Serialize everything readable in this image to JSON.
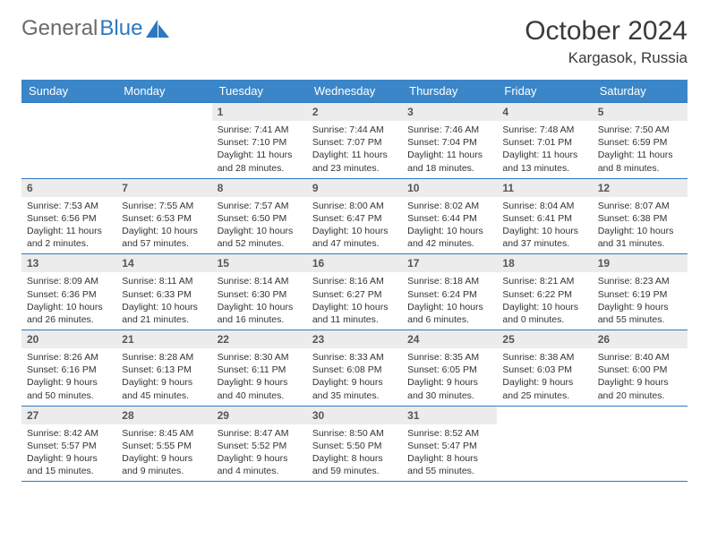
{
  "brand": {
    "part1": "General",
    "part2": "Blue"
  },
  "title": "October 2024",
  "location": "Kargasok, Russia",
  "weekdays": [
    "Sunday",
    "Monday",
    "Tuesday",
    "Wednesday",
    "Thursday",
    "Friday",
    "Saturday"
  ],
  "colors": {
    "header_bg": "#3b86c8",
    "border": "#2d79c1",
    "daynum_bg": "#ececec",
    "text": "#333333",
    "logo_gray": "#6a6a6a"
  },
  "weeks": [
    [
      null,
      null,
      {
        "n": "1",
        "sr": "7:41 AM",
        "ss": "7:10 PM",
        "dl": "11 hours and 28 minutes."
      },
      {
        "n": "2",
        "sr": "7:44 AM",
        "ss": "7:07 PM",
        "dl": "11 hours and 23 minutes."
      },
      {
        "n": "3",
        "sr": "7:46 AM",
        "ss": "7:04 PM",
        "dl": "11 hours and 18 minutes."
      },
      {
        "n": "4",
        "sr": "7:48 AM",
        "ss": "7:01 PM",
        "dl": "11 hours and 13 minutes."
      },
      {
        "n": "5",
        "sr": "7:50 AM",
        "ss": "6:59 PM",
        "dl": "11 hours and 8 minutes."
      }
    ],
    [
      {
        "n": "6",
        "sr": "7:53 AM",
        "ss": "6:56 PM",
        "dl": "11 hours and 2 minutes."
      },
      {
        "n": "7",
        "sr": "7:55 AM",
        "ss": "6:53 PM",
        "dl": "10 hours and 57 minutes."
      },
      {
        "n": "8",
        "sr": "7:57 AM",
        "ss": "6:50 PM",
        "dl": "10 hours and 52 minutes."
      },
      {
        "n": "9",
        "sr": "8:00 AM",
        "ss": "6:47 PM",
        "dl": "10 hours and 47 minutes."
      },
      {
        "n": "10",
        "sr": "8:02 AM",
        "ss": "6:44 PM",
        "dl": "10 hours and 42 minutes."
      },
      {
        "n": "11",
        "sr": "8:04 AM",
        "ss": "6:41 PM",
        "dl": "10 hours and 37 minutes."
      },
      {
        "n": "12",
        "sr": "8:07 AM",
        "ss": "6:38 PM",
        "dl": "10 hours and 31 minutes."
      }
    ],
    [
      {
        "n": "13",
        "sr": "8:09 AM",
        "ss": "6:36 PM",
        "dl": "10 hours and 26 minutes."
      },
      {
        "n": "14",
        "sr": "8:11 AM",
        "ss": "6:33 PM",
        "dl": "10 hours and 21 minutes."
      },
      {
        "n": "15",
        "sr": "8:14 AM",
        "ss": "6:30 PM",
        "dl": "10 hours and 16 minutes."
      },
      {
        "n": "16",
        "sr": "8:16 AM",
        "ss": "6:27 PM",
        "dl": "10 hours and 11 minutes."
      },
      {
        "n": "17",
        "sr": "8:18 AM",
        "ss": "6:24 PM",
        "dl": "10 hours and 6 minutes."
      },
      {
        "n": "18",
        "sr": "8:21 AM",
        "ss": "6:22 PM",
        "dl": "10 hours and 0 minutes."
      },
      {
        "n": "19",
        "sr": "8:23 AM",
        "ss": "6:19 PM",
        "dl": "9 hours and 55 minutes."
      }
    ],
    [
      {
        "n": "20",
        "sr": "8:26 AM",
        "ss": "6:16 PM",
        "dl": "9 hours and 50 minutes."
      },
      {
        "n": "21",
        "sr": "8:28 AM",
        "ss": "6:13 PM",
        "dl": "9 hours and 45 minutes."
      },
      {
        "n": "22",
        "sr": "8:30 AM",
        "ss": "6:11 PM",
        "dl": "9 hours and 40 minutes."
      },
      {
        "n": "23",
        "sr": "8:33 AM",
        "ss": "6:08 PM",
        "dl": "9 hours and 35 minutes."
      },
      {
        "n": "24",
        "sr": "8:35 AM",
        "ss": "6:05 PM",
        "dl": "9 hours and 30 minutes."
      },
      {
        "n": "25",
        "sr": "8:38 AM",
        "ss": "6:03 PM",
        "dl": "9 hours and 25 minutes."
      },
      {
        "n": "26",
        "sr": "8:40 AM",
        "ss": "6:00 PM",
        "dl": "9 hours and 20 minutes."
      }
    ],
    [
      {
        "n": "27",
        "sr": "8:42 AM",
        "ss": "5:57 PM",
        "dl": "9 hours and 15 minutes."
      },
      {
        "n": "28",
        "sr": "8:45 AM",
        "ss": "5:55 PM",
        "dl": "9 hours and 9 minutes."
      },
      {
        "n": "29",
        "sr": "8:47 AM",
        "ss": "5:52 PM",
        "dl": "9 hours and 4 minutes."
      },
      {
        "n": "30",
        "sr": "8:50 AM",
        "ss": "5:50 PM",
        "dl": "8 hours and 59 minutes."
      },
      {
        "n": "31",
        "sr": "8:52 AM",
        "ss": "5:47 PM",
        "dl": "8 hours and 55 minutes."
      },
      null,
      null
    ]
  ],
  "labels": {
    "sunrise": "Sunrise: ",
    "sunset": "Sunset: ",
    "daylight": "Daylight: "
  }
}
